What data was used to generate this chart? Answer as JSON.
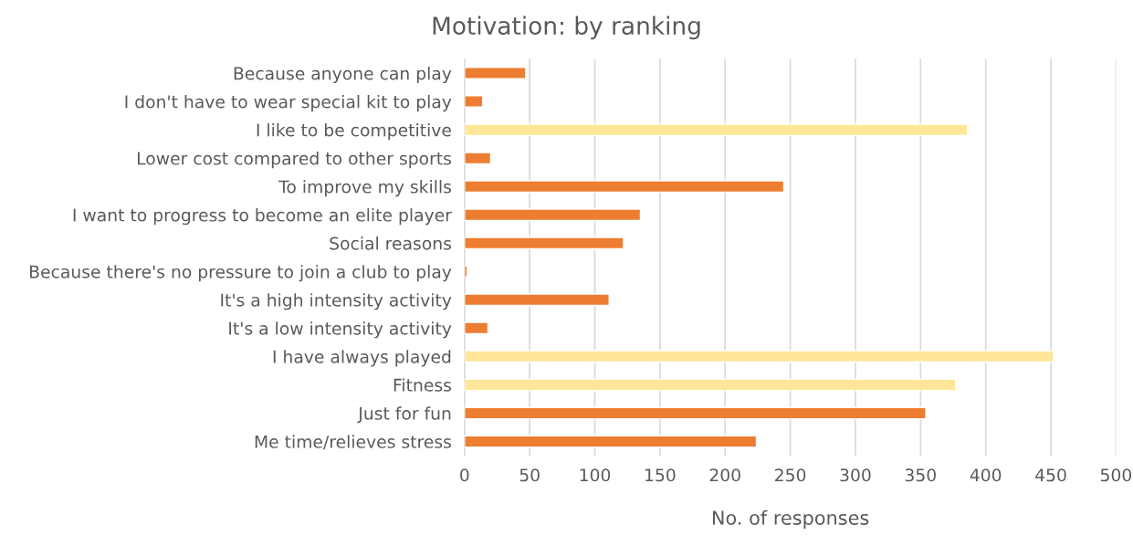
{
  "chart_data": {
    "type": "bar",
    "orientation": "horizontal",
    "title": "Motivation: by ranking",
    "xlabel": "No. of responses",
    "categories": [
      "Because anyone can play",
      "I don't have to wear special kit to play",
      "I like to be competitive",
      "Lower cost compared to other sports",
      "To improve my skills",
      "I want to progress to become an elite player",
      "Social reasons",
      "Because there's no pressure to join a club to play",
      "It's a high intensity activity",
      "It's a low intensity activity",
      "I have always played",
      "Fitness",
      "Just for fun",
      "Me time/relieves stress"
    ],
    "values": [
      47,
      14,
      386,
      20,
      245,
      135,
      122,
      2,
      111,
      18,
      452,
      377,
      354,
      224
    ],
    "colors": [
      "#ed7d31",
      "#ed7d31",
      "#ffe699",
      "#ed7d31",
      "#ed7d31",
      "#ed7d31",
      "#ed7d31",
      "#ed7d31",
      "#ed7d31",
      "#ed7d31",
      "#ffe699",
      "#ffe699",
      "#ed7d31",
      "#ed7d31"
    ],
    "xlim": [
      0,
      500
    ],
    "xticks": [
      0,
      50,
      100,
      150,
      200,
      250,
      300,
      350,
      400,
      450,
      500
    ],
    "grid": "x"
  }
}
